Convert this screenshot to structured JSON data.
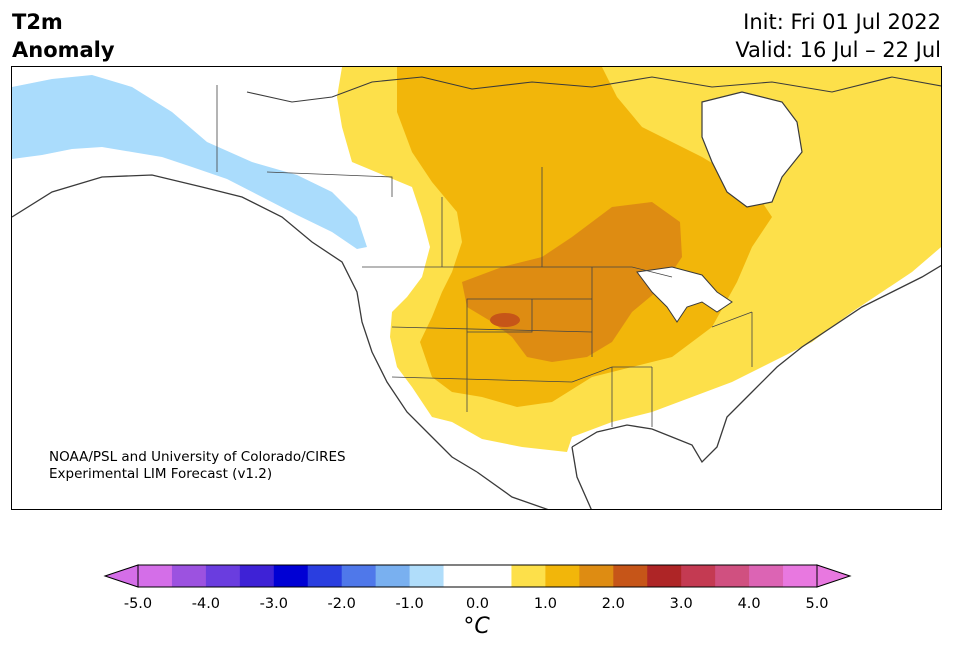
{
  "title": {
    "left_line1": "T2m",
    "left_line2": "Anomaly",
    "right_line1": "Init: Fri 01 Jul 2022",
    "right_line2": "Valid: 16 Jul – 22 Jul"
  },
  "credit": {
    "line1": "NOAA/PSL and University of Colorado/CIRES",
    "line2": "Experimental LIM Forecast (v1.2)"
  },
  "colorbar": {
    "ticks": [
      "-5.0",
      "-4.0",
      "-3.0",
      "-2.0",
      "-1.0",
      "0.0",
      "1.0",
      "2.0",
      "3.0",
      "4.0",
      "5.0"
    ],
    "unit": "°C",
    "colors": [
      "#d46ee8",
      "#9c52e0",
      "#6a3ddf",
      "#3e22d6",
      "#0000d4",
      "#2a3ee0",
      "#4f78ea",
      "#79b0f0",
      "#b0ddfa",
      "#ffffff",
      "#ffffff",
      "#fde04a",
      "#f2b60a",
      "#de8c12",
      "#c65518",
      "#ae2526",
      "#c43a52",
      "#d05080",
      "#dc64b4",
      "#e878e0"
    ],
    "extend_min_color": "#d46ee8",
    "extend_max_color": "#e878e0"
  },
  "map_colors": {
    "light_blue": "#aadcfc",
    "yellow": "#fde04a",
    "gold": "#f2b60a",
    "orange": "#de8c12",
    "red": "#c65518",
    "coast": "#3a3a3a"
  }
}
